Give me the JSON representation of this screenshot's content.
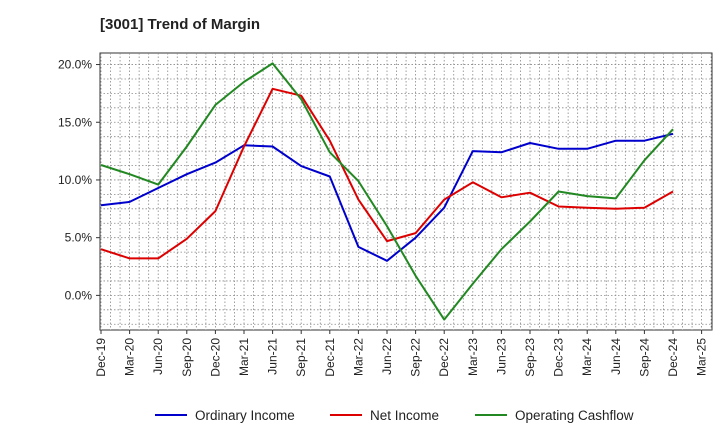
{
  "title": "[3001]  Trend of Margin",
  "chart_data": {
    "type": "line",
    "title": "[3001]  Trend of Margin",
    "xlabel": "",
    "ylabel": "",
    "categories": [
      "Dec-19",
      "Mar-20",
      "Jun-20",
      "Sep-20",
      "Dec-20",
      "Mar-21",
      "Jun-21",
      "Sep-21",
      "Dec-21",
      "Mar-22",
      "Jun-22",
      "Sep-22",
      "Dec-22",
      "Mar-23",
      "Jun-23",
      "Sep-23",
      "Dec-23",
      "Mar-24",
      "Jun-24",
      "Sep-24",
      "Dec-24",
      "Mar-25"
    ],
    "ylim": [
      -3.0,
      21.0
    ],
    "yticks": [
      0,
      5,
      10,
      15,
      20
    ],
    "ytick_labels": [
      "0.0%",
      "5.0%",
      "10.0%",
      "15.0%",
      "20.0%"
    ],
    "grid": true,
    "legend_position": "bottom",
    "series": [
      {
        "name": "Ordinary Income",
        "color": "#0000cc",
        "values": [
          7.8,
          8.1,
          9.3,
          10.5,
          11.5,
          13.0,
          12.9,
          11.2,
          10.3,
          4.2,
          3.0,
          5.0,
          7.6,
          12.5,
          12.4,
          13.2,
          12.7,
          12.7,
          13.4,
          13.4,
          14.0,
          null
        ]
      },
      {
        "name": "Net Income",
        "color": "#dd0000",
        "values": [
          4.0,
          3.2,
          3.2,
          4.9,
          7.3,
          12.9,
          17.9,
          17.3,
          13.4,
          8.3,
          4.7,
          5.4,
          8.3,
          9.8,
          8.5,
          8.9,
          7.7,
          7.6,
          7.5,
          7.6,
          9.0,
          null
        ]
      },
      {
        "name": "Operating Cashflow",
        "color": "#228822",
        "values": [
          11.3,
          10.5,
          9.6,
          12.9,
          16.5,
          18.5,
          20.1,
          17.0,
          12.4,
          9.9,
          6.0,
          1.7,
          -2.1,
          1.0,
          4.0,
          6.4,
          9.0,
          8.6,
          8.4,
          11.7,
          14.4,
          null
        ]
      }
    ]
  }
}
